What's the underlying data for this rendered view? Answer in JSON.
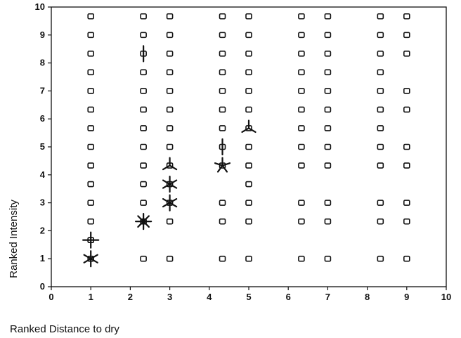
{
  "chart_data": {
    "type": "scatter",
    "xlabel": "Ranked Distance to dry",
    "ylabel": "Ranked Intensity",
    "xlim": [
      0,
      10
    ],
    "ylim": [
      0,
      10
    ],
    "xticks": [
      0,
      1,
      2,
      3,
      4,
      5,
      6,
      7,
      8,
      9,
      10
    ],
    "yticks": [
      0,
      1,
      2,
      3,
      4,
      5,
      6,
      7,
      8,
      9,
      10
    ],
    "grid": false,
    "legend": "none",
    "columns": [
      {
        "x": 1,
        "y": [
          1.667,
          2.333,
          3,
          3.667,
          4.333,
          5,
          5.667,
          6.333,
          7,
          7.667,
          8.333,
          9,
          9.667
        ]
      },
      {
        "x": 2.333,
        "y": [
          1,
          3,
          3.667,
          4.333,
          5,
          5.667,
          6.333,
          7,
          7.667,
          9,
          9.667
        ]
      },
      {
        "x": 3,
        "y": [
          1,
          2.333,
          5,
          5.667,
          6.333,
          7,
          7.667,
          8.333,
          9,
          9.667
        ]
      },
      {
        "x": 4.333,
        "y": [
          1,
          2.333,
          3,
          5.667,
          6.333,
          7,
          7.667,
          8.333,
          9,
          9.667
        ]
      },
      {
        "x": 5,
        "y": [
          1,
          2.333,
          3,
          3.667,
          4.333,
          5,
          6.333,
          7,
          7.667,
          8.333,
          9,
          9.667
        ]
      },
      {
        "x": 6.333,
        "y": [
          1,
          2.333,
          3,
          4.333,
          5,
          5.667,
          6.333,
          7,
          7.667,
          8.333,
          9,
          9.667
        ]
      },
      {
        "x": 7,
        "y": [
          1,
          2.333,
          3,
          4.333,
          5,
          5.667,
          6.333,
          7,
          7.667,
          8.333,
          9,
          9.667
        ]
      },
      {
        "x": 8.333,
        "y": [
          1,
          2.333,
          3,
          4.333,
          5,
          5.667,
          6.333,
          7,
          7.667,
          8.333,
          9,
          9.667
        ]
      },
      {
        "x": 9,
        "y": [
          1,
          2.333,
          3,
          4.333,
          5,
          6.333,
          7,
          8.333,
          9,
          9.667
        ]
      }
    ],
    "sunflowers": [
      {
        "x": 1,
        "y": 1,
        "petals": 6
      },
      {
        "x": 1,
        "y": 1.667,
        "petals": 4
      },
      {
        "x": 2.333,
        "y": 2.333,
        "petals": 8
      },
      {
        "x": 3,
        "y": 3,
        "petals": 6
      },
      {
        "x": 3,
        "y": 3.667,
        "petals": 6
      },
      {
        "x": 4.333,
        "y": 4.333,
        "petals": 5
      },
      {
        "x": 3,
        "y": 4.333,
        "petals": 3
      },
      {
        "x": 4.333,
        "y": 5,
        "petals": 2
      },
      {
        "x": 5,
        "y": 5.667,
        "petals": 3
      },
      {
        "x": 2.333,
        "y": 8.333,
        "petals": 2
      }
    ]
  }
}
